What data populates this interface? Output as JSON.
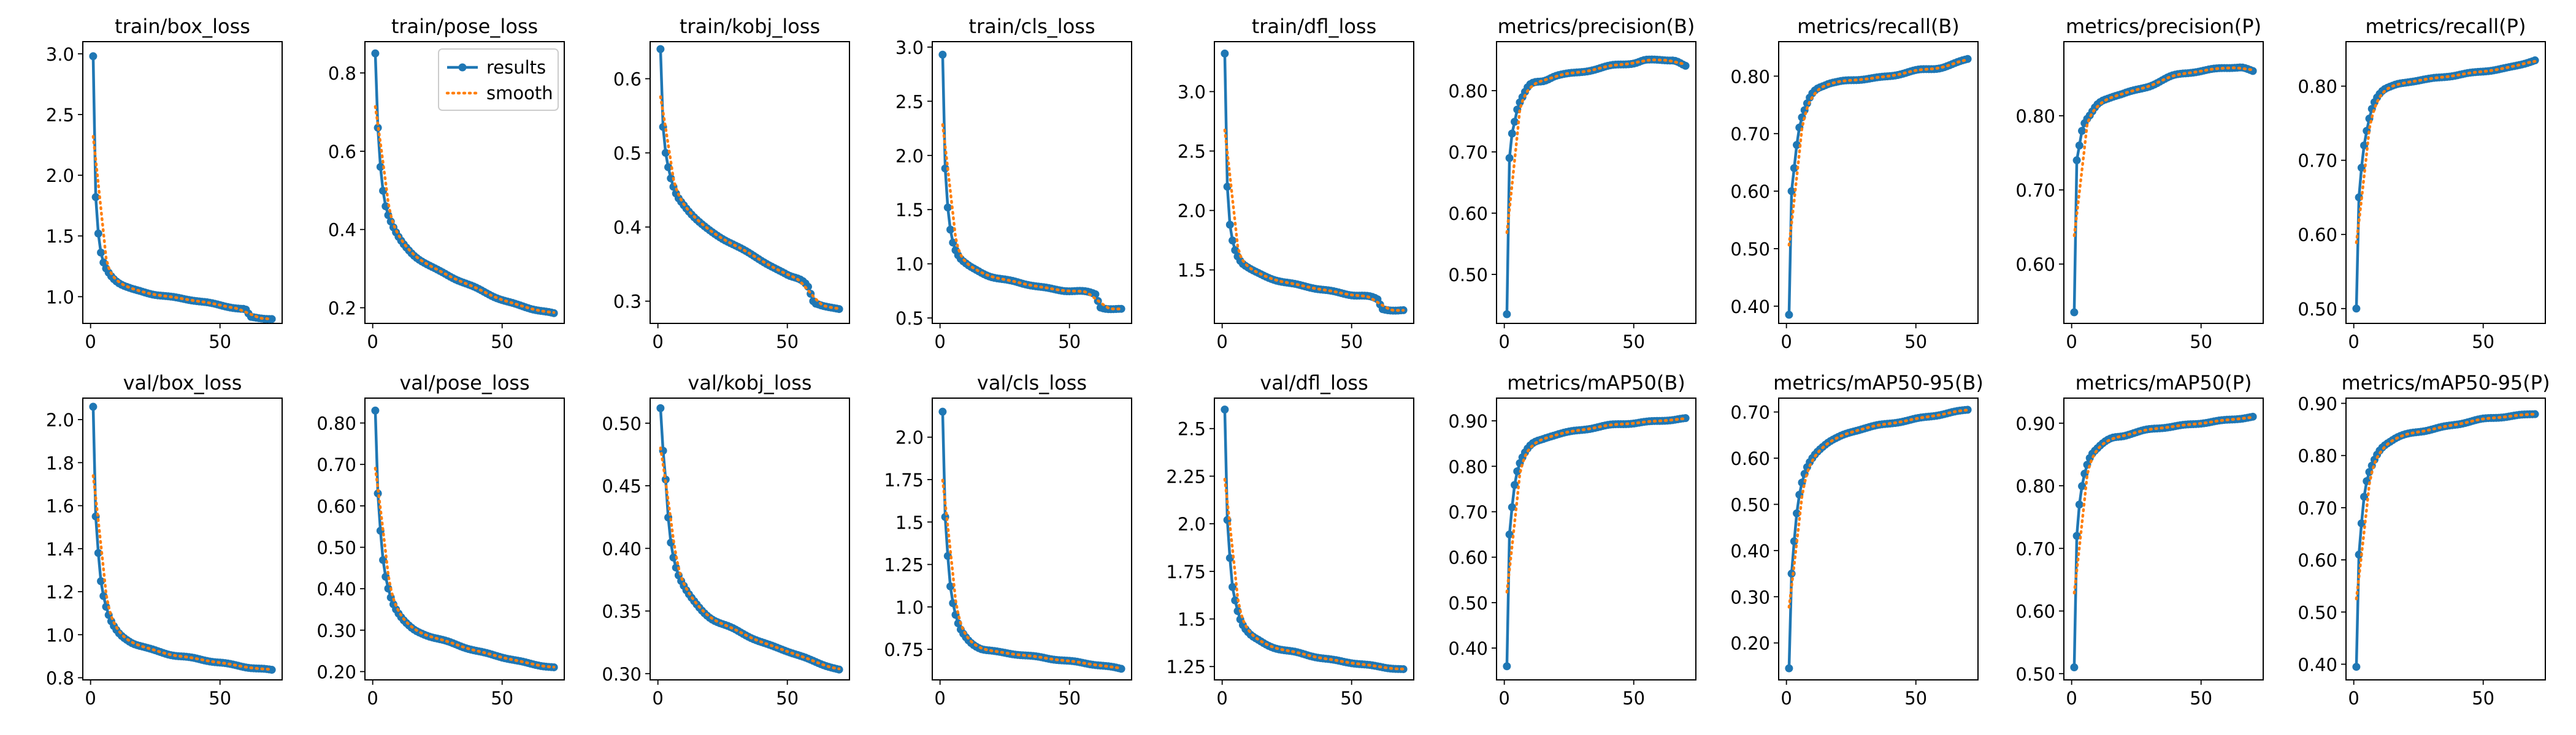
{
  "chart_data": [
    {
      "type": "line",
      "title": "train/box_loss",
      "ylim": [
        0.78,
        3.1
      ],
      "yticks": [
        1.0,
        1.5,
        2.0,
        2.5,
        3.0
      ],
      "anchors": [
        [
          1,
          2.98
        ],
        [
          2,
          1.82
        ],
        [
          3,
          1.52
        ],
        [
          4,
          1.36
        ],
        [
          5,
          1.28
        ],
        [
          7,
          1.2
        ],
        [
          10,
          1.13
        ],
        [
          15,
          1.07
        ],
        [
          20,
          1.04
        ],
        [
          30,
          1.0
        ],
        [
          40,
          0.97
        ],
        [
          50,
          0.93
        ],
        [
          58,
          0.9
        ],
        [
          60,
          0.89
        ],
        [
          62,
          0.83
        ],
        [
          70,
          0.82
        ]
      ]
    },
    {
      "type": "line",
      "title": "train/pose_loss",
      "ylim": [
        0.16,
        0.88
      ],
      "yticks": [
        0.2,
        0.4,
        0.6,
        0.8
      ],
      "legend": {
        "position": "top-right",
        "entries": [
          "results",
          "smooth"
        ]
      },
      "anchors": [
        [
          1,
          0.85
        ],
        [
          2,
          0.66
        ],
        [
          3,
          0.56
        ],
        [
          4,
          0.5
        ],
        [
          5,
          0.46
        ],
        [
          7,
          0.42
        ],
        [
          10,
          0.38
        ],
        [
          15,
          0.34
        ],
        [
          20,
          0.315
        ],
        [
          30,
          0.28
        ],
        [
          40,
          0.25
        ],
        [
          50,
          0.22
        ],
        [
          60,
          0.2
        ],
        [
          70,
          0.185
        ]
      ]
    },
    {
      "type": "line",
      "title": "train/kobj_loss",
      "ylim": [
        0.27,
        0.65
      ],
      "yticks": [
        0.3,
        0.4,
        0.5,
        0.6
      ],
      "anchors": [
        [
          1,
          0.64
        ],
        [
          2,
          0.535
        ],
        [
          3,
          0.5
        ],
        [
          4,
          0.48
        ],
        [
          5,
          0.465
        ],
        [
          7,
          0.445
        ],
        [
          10,
          0.43
        ],
        [
          15,
          0.41
        ],
        [
          20,
          0.395
        ],
        [
          30,
          0.375
        ],
        [
          40,
          0.355
        ],
        [
          50,
          0.335
        ],
        [
          58,
          0.32
        ],
        [
          60,
          0.3
        ],
        [
          62,
          0.295
        ],
        [
          70,
          0.29
        ]
      ]
    },
    {
      "type": "line",
      "title": "train/cls_loss",
      "ylim": [
        0.45,
        3.05
      ],
      "yticks": [
        0.5,
        1.0,
        1.5,
        2.0,
        2.5,
        3.0
      ],
      "anchors": [
        [
          1,
          2.93
        ],
        [
          2,
          1.88
        ],
        [
          3,
          1.52
        ],
        [
          4,
          1.32
        ],
        [
          5,
          1.2
        ],
        [
          7,
          1.08
        ],
        [
          10,
          1.0
        ],
        [
          15,
          0.93
        ],
        [
          20,
          0.88
        ],
        [
          30,
          0.83
        ],
        [
          40,
          0.78
        ],
        [
          50,
          0.75
        ],
        [
          60,
          0.72
        ],
        [
          62,
          0.6
        ],
        [
          70,
          0.58
        ]
      ]
    },
    {
      "type": "line",
      "title": "train/dfl_loss",
      "ylim": [
        1.05,
        3.42
      ],
      "yticks": [
        1.5,
        2.0,
        2.5,
        3.0
      ],
      "anchors": [
        [
          1,
          3.32
        ],
        [
          2,
          2.2
        ],
        [
          3,
          1.88
        ],
        [
          4,
          1.75
        ],
        [
          5,
          1.67
        ],
        [
          7,
          1.58
        ],
        [
          10,
          1.52
        ],
        [
          15,
          1.46
        ],
        [
          20,
          1.42
        ],
        [
          30,
          1.37
        ],
        [
          40,
          1.33
        ],
        [
          50,
          1.29
        ],
        [
          60,
          1.25
        ],
        [
          62,
          1.17
        ],
        [
          70,
          1.16
        ]
      ]
    },
    {
      "type": "line",
      "title": "metrics/precision(B)",
      "ylim": [
        0.42,
        0.88
      ],
      "yticks": [
        0.5,
        0.6,
        0.7,
        0.8
      ],
      "anchors": [
        [
          1,
          0.435
        ],
        [
          2,
          0.69
        ],
        [
          3,
          0.73
        ],
        [
          4,
          0.75
        ],
        [
          5,
          0.77
        ],
        [
          7,
          0.79
        ],
        [
          10,
          0.81
        ],
        [
          15,
          0.815
        ],
        [
          20,
          0.825
        ],
        [
          30,
          0.83
        ],
        [
          40,
          0.84
        ],
        [
          50,
          0.845
        ],
        [
          55,
          0.85
        ],
        [
          60,
          0.85
        ],
        [
          65,
          0.85
        ],
        [
          70,
          0.84
        ]
      ]
    },
    {
      "type": "line",
      "title": "metrics/recall(B)",
      "ylim": [
        0.37,
        0.86
      ],
      "yticks": [
        0.4,
        0.5,
        0.6,
        0.7,
        0.8
      ],
      "anchors": [
        [
          1,
          0.385
        ],
        [
          2,
          0.6
        ],
        [
          3,
          0.64
        ],
        [
          4,
          0.68
        ],
        [
          5,
          0.71
        ],
        [
          7,
          0.74
        ],
        [
          10,
          0.77
        ],
        [
          15,
          0.785
        ],
        [
          20,
          0.79
        ],
        [
          30,
          0.795
        ],
        [
          40,
          0.8
        ],
        [
          50,
          0.81
        ],
        [
          60,
          0.815
        ],
        [
          70,
          0.83
        ]
      ]
    },
    {
      "type": "line",
      "title": "metrics/precision(P)",
      "ylim": [
        0.52,
        0.9
      ],
      "yticks": [
        0.6,
        0.7,
        0.8
      ],
      "anchors": [
        [
          1,
          0.535
        ],
        [
          2,
          0.74
        ],
        [
          3,
          0.76
        ],
        [
          4,
          0.78
        ],
        [
          5,
          0.79
        ],
        [
          7,
          0.8
        ],
        [
          10,
          0.815
        ],
        [
          15,
          0.825
        ],
        [
          20,
          0.83
        ],
        [
          30,
          0.84
        ],
        [
          40,
          0.855
        ],
        [
          50,
          0.86
        ],
        [
          60,
          0.865
        ],
        [
          65,
          0.865
        ],
        [
          70,
          0.86
        ]
      ]
    },
    {
      "type": "line",
      "title": "metrics/recall(P)",
      "ylim": [
        0.48,
        0.86
      ],
      "yticks": [
        0.5,
        0.6,
        0.7,
        0.8
      ],
      "anchors": [
        [
          1,
          0.5
        ],
        [
          2,
          0.65
        ],
        [
          3,
          0.69
        ],
        [
          4,
          0.72
        ],
        [
          5,
          0.74
        ],
        [
          7,
          0.77
        ],
        [
          10,
          0.79
        ],
        [
          15,
          0.8
        ],
        [
          20,
          0.805
        ],
        [
          30,
          0.81
        ],
        [
          40,
          0.815
        ],
        [
          50,
          0.82
        ],
        [
          60,
          0.825
        ],
        [
          70,
          0.835
        ]
      ]
    },
    {
      "type": "line",
      "title": "val/box_loss",
      "ylim": [
        0.79,
        2.1
      ],
      "yticks": [
        0.8,
        1.0,
        1.2,
        1.4,
        1.6,
        1.8,
        2.0
      ],
      "anchors": [
        [
          1,
          2.06
        ],
        [
          2,
          1.55
        ],
        [
          3,
          1.38
        ],
        [
          4,
          1.25
        ],
        [
          5,
          1.18
        ],
        [
          7,
          1.09
        ],
        [
          10,
          1.02
        ],
        [
          15,
          0.97
        ],
        [
          20,
          0.945
        ],
        [
          30,
          0.91
        ],
        [
          40,
          0.89
        ],
        [
          50,
          0.87
        ],
        [
          60,
          0.85
        ],
        [
          70,
          0.835
        ]
      ]
    },
    {
      "type": "line",
      "title": "val/pose_loss",
      "ylim": [
        0.18,
        0.86
      ],
      "yticks": [
        0.2,
        0.3,
        0.4,
        0.5,
        0.6,
        0.7,
        0.8
      ],
      "anchors": [
        [
          1,
          0.83
        ],
        [
          2,
          0.63
        ],
        [
          3,
          0.54
        ],
        [
          4,
          0.47
        ],
        [
          5,
          0.43
        ],
        [
          7,
          0.38
        ],
        [
          10,
          0.34
        ],
        [
          15,
          0.305
        ],
        [
          20,
          0.29
        ],
        [
          30,
          0.27
        ],
        [
          40,
          0.25
        ],
        [
          50,
          0.235
        ],
        [
          60,
          0.22
        ],
        [
          70,
          0.21
        ]
      ]
    },
    {
      "type": "line",
      "title": "val/kobj_loss",
      "ylim": [
        0.295,
        0.52
      ],
      "yticks": [
        0.3,
        0.35,
        0.4,
        0.45,
        0.5
      ],
      "anchors": [
        [
          1,
          0.512
        ],
        [
          2,
          0.478
        ],
        [
          3,
          0.455
        ],
        [
          4,
          0.425
        ],
        [
          5,
          0.405
        ],
        [
          7,
          0.385
        ],
        [
          10,
          0.37
        ],
        [
          15,
          0.355
        ],
        [
          20,
          0.345
        ],
        [
          30,
          0.335
        ],
        [
          40,
          0.325
        ],
        [
          50,
          0.318
        ],
        [
          60,
          0.31
        ],
        [
          70,
          0.303
        ]
      ]
    },
    {
      "type": "line",
      "title": "val/cls_loss",
      "ylim": [
        0.57,
        2.23
      ],
      "yticks": [
        0.75,
        1.0,
        1.25,
        1.5,
        1.75,
        2.0
      ],
      "anchors": [
        [
          1,
          2.15
        ],
        [
          2,
          1.53
        ],
        [
          3,
          1.3
        ],
        [
          4,
          1.12
        ],
        [
          5,
          1.02
        ],
        [
          7,
          0.9
        ],
        [
          10,
          0.82
        ],
        [
          15,
          0.76
        ],
        [
          20,
          0.74
        ],
        [
          30,
          0.72
        ],
        [
          40,
          0.7
        ],
        [
          50,
          0.68
        ],
        [
          60,
          0.66
        ],
        [
          70,
          0.635
        ]
      ]
    },
    {
      "type": "line",
      "title": "val/dfl_loss",
      "ylim": [
        1.18,
        2.66
      ],
      "yticks": [
        1.25,
        1.5,
        1.75,
        2.0,
        2.25,
        2.5
      ],
      "anchors": [
        [
          1,
          2.6
        ],
        [
          2,
          2.02
        ],
        [
          3,
          1.82
        ],
        [
          4,
          1.67
        ],
        [
          5,
          1.6
        ],
        [
          7,
          1.5
        ],
        [
          10,
          1.43
        ],
        [
          15,
          1.38
        ],
        [
          20,
          1.35
        ],
        [
          30,
          1.32
        ],
        [
          40,
          1.29
        ],
        [
          50,
          1.27
        ],
        [
          60,
          1.25
        ],
        [
          70,
          1.235
        ]
      ]
    },
    {
      "type": "line",
      "title": "metrics/mAP50(B)",
      "ylim": [
        0.33,
        0.95
      ],
      "yticks": [
        0.4,
        0.5,
        0.6,
        0.7,
        0.8,
        0.9
      ],
      "anchors": [
        [
          1,
          0.36
        ],
        [
          2,
          0.65
        ],
        [
          3,
          0.71
        ],
        [
          4,
          0.76
        ],
        [
          5,
          0.79
        ],
        [
          7,
          0.82
        ],
        [
          10,
          0.845
        ],
        [
          15,
          0.86
        ],
        [
          20,
          0.87
        ],
        [
          30,
          0.88
        ],
        [
          40,
          0.89
        ],
        [
          50,
          0.895
        ],
        [
          60,
          0.9
        ],
        [
          70,
          0.905
        ]
      ]
    },
    {
      "type": "line",
      "title": "metrics/mAP50-95(B)",
      "ylim": [
        0.12,
        0.73
      ],
      "yticks": [
        0.2,
        0.3,
        0.4,
        0.5,
        0.6,
        0.7
      ],
      "anchors": [
        [
          1,
          0.145
        ],
        [
          2,
          0.35
        ],
        [
          3,
          0.42
        ],
        [
          4,
          0.48
        ],
        [
          5,
          0.52
        ],
        [
          7,
          0.565
        ],
        [
          10,
          0.6
        ],
        [
          15,
          0.63
        ],
        [
          20,
          0.645
        ],
        [
          30,
          0.665
        ],
        [
          40,
          0.675
        ],
        [
          50,
          0.685
        ],
        [
          60,
          0.695
        ],
        [
          70,
          0.705
        ]
      ]
    },
    {
      "type": "line",
      "title": "metrics/mAP50(P)",
      "ylim": [
        0.49,
        0.94
      ],
      "yticks": [
        0.5,
        0.6,
        0.7,
        0.8,
        0.9
      ],
      "anchors": [
        [
          1,
          0.51
        ],
        [
          2,
          0.72
        ],
        [
          3,
          0.77
        ],
        [
          4,
          0.8
        ],
        [
          5,
          0.82
        ],
        [
          7,
          0.845
        ],
        [
          10,
          0.86
        ],
        [
          15,
          0.875
        ],
        [
          20,
          0.88
        ],
        [
          30,
          0.89
        ],
        [
          40,
          0.895
        ],
        [
          50,
          0.9
        ],
        [
          60,
          0.905
        ],
        [
          70,
          0.91
        ]
      ]
    },
    {
      "type": "line",
      "title": "metrics/mAP50-95(P)",
      "ylim": [
        0.37,
        0.91
      ],
      "yticks": [
        0.4,
        0.5,
        0.6,
        0.7,
        0.8,
        0.9
      ],
      "anchors": [
        [
          1,
          0.395
        ],
        [
          2,
          0.61
        ],
        [
          3,
          0.67
        ],
        [
          4,
          0.72
        ],
        [
          5,
          0.75
        ],
        [
          7,
          0.78
        ],
        [
          10,
          0.81
        ],
        [
          15,
          0.83
        ],
        [
          20,
          0.84
        ],
        [
          30,
          0.85
        ],
        [
          40,
          0.86
        ],
        [
          50,
          0.87
        ],
        [
          60,
          0.875
        ],
        [
          70,
          0.88
        ]
      ]
    }
  ],
  "shared": {
    "xlim": [
      -3,
      74
    ],
    "xticks": [
      0,
      50
    ],
    "epochs": 70,
    "series_names": [
      "results",
      "smooth"
    ],
    "colors": {
      "results": "#1f77b4",
      "smooth": "#ff7f0e",
      "axis": "#000000"
    }
  }
}
